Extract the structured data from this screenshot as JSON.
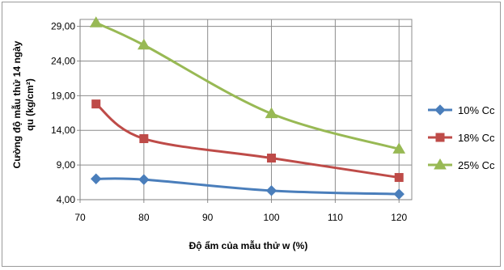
{
  "chart_data": {
    "type": "line",
    "title": "",
    "xlabel": "Độ ẩm của mẫu thử w (%)",
    "ylabel_lines": [
      "Cường độ mẫu thử 14 ngày",
      "qu (kg/cm²)"
    ],
    "x_ticks": [
      "70",
      "80",
      "90",
      "100",
      "110",
      "120"
    ],
    "y_ticks": [
      "4,00",
      "9,00",
      "14,00",
      "19,00",
      "24,00",
      "29,00"
    ],
    "xlim": [
      70,
      122
    ],
    "ylim": [
      4,
      30
    ],
    "grid": "vertical and horizontal",
    "legend_position": "right",
    "series": [
      {
        "name": "10% Cc",
        "color": "#4a7ebb",
        "marker": "diamond",
        "x": [
          72.5,
          80,
          100,
          120
        ],
        "y": [
          7.0,
          6.9,
          5.3,
          4.8
        ]
      },
      {
        "name": "18% Cc",
        "color": "#be4b48",
        "marker": "square",
        "x": [
          72.5,
          80,
          100,
          120
        ],
        "y": [
          17.8,
          12.8,
          10.0,
          7.2
        ]
      },
      {
        "name": "25% Cc",
        "color": "#98b954",
        "marker": "triangle",
        "x": [
          72.5,
          80,
          100,
          120
        ],
        "y": [
          29.5,
          26.3,
          16.4,
          11.3
        ]
      }
    ]
  }
}
